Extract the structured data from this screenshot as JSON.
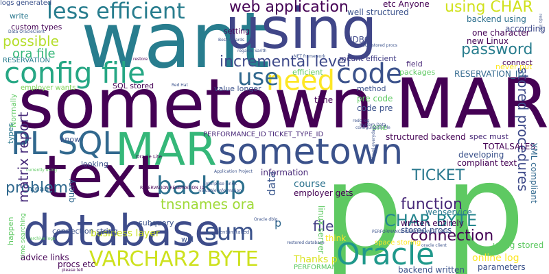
{
  "words": [
    {
      "text": "want",
      "color": "#287d8e"
    },
    {
      "text": "using",
      "color": "#404688"
    },
    {
      "text": "sometown MAR",
      "color": "#440154"
    },
    {
      "text": "p p",
      "color": "#5ec962"
    },
    {
      "text": "config file",
      "color": "#26a784"
    },
    {
      "text": "sometown",
      "color": "#3b528b"
    },
    {
      "text": "MAR",
      "color": "#35b779"
    },
    {
      "text": "text",
      "color": "#440154"
    },
    {
      "text": "database",
      "color": "#3e4c8a"
    },
    {
      "text": "PL SQL",
      "color": "#31688e"
    },
    {
      "text": "less efficient",
      "color": "#287d8e"
    },
    {
      "text": "backup",
      "color": "#2d708e"
    },
    {
      "text": "VARCHAR2 BYTE",
      "color": "#cde11d"
    },
    {
      "text": "Oracle",
      "color": "#1f988b"
    },
    {
      "text": "code",
      "color": "#3b528b"
    },
    {
      "text": "need",
      "color": "#fde725"
    },
    {
      "text": "use",
      "color": "#31688e"
    },
    {
      "text": "sum",
      "color": "#3b528b"
    },
    {
      "text": "web application",
      "color": "#440154"
    },
    {
      "text": "incremental level",
      "color": "#3e4989"
    },
    {
      "text": "using CHAR",
      "color": "#d0e11c"
    },
    {
      "text": "password",
      "color": "#287d8e"
    },
    {
      "text": "CHAR BYTE",
      "color": "#24868e"
    },
    {
      "text": "function",
      "color": "#482878"
    },
    {
      "text": "tnsnames ora",
      "color": "#a0da39"
    },
    {
      "text": "TICKET",
      "color": "#2a788e"
    },
    {
      "text": "problem",
      "color": "#30698e"
    },
    {
      "text": "connection",
      "color": "#440154"
    },
    {
      "text": "stored procedures",
      "color": "#3e4a89"
    },
    {
      "text": "matrix report",
      "color": "#472c7a"
    },
    {
      "text": "file",
      "color": "#433e85"
    },
    {
      "text": "business layer",
      "color": "#c8e020"
    },
    {
      "text": "ora file",
      "color": "#35b779"
    },
    {
      "text": "possible",
      "color": "#b5de2b"
    },
    {
      "text": "data",
      "color": "#39568c"
    },
    {
      "text": "p",
      "color": "#31688e"
    },
    {
      "text": "online log",
      "color": "#fde725"
    },
    {
      "text": "Thanks p",
      "color": "#d8e219"
    },
    {
      "text": "course",
      "color": "#2c728e"
    },
    {
      "text": "write",
      "color": "#2a788e"
    },
    {
      "text": "etc Anyone",
      "color": "#440154"
    },
    {
      "text": "well structured",
      "color": "#3b528b"
    },
    {
      "text": "backend using",
      "color": "#2d708e"
    },
    {
      "text": "according",
      "color": "#3e4989"
    },
    {
      "text": "one character",
      "color": "#440154"
    },
    {
      "text": "custom types",
      "color": "#440154"
    },
    {
      "text": "setting",
      "color": "#440154"
    },
    {
      "text": "JDBC",
      "color": "#3e4989"
    },
    {
      "text": "new Linux",
      "color": "#440154"
    },
    {
      "text": "RESERVATION",
      "color": "#287d8e"
    },
    {
      "text": "meant efficient",
      "color": "#433e85"
    },
    {
      "text": "field",
      "color": "#482878"
    },
    {
      "text": "connect",
      "color": "#440154"
    },
    {
      "text": "never put",
      "color": "#fde725"
    },
    {
      "text": "employer wants",
      "color": "#7ad151"
    },
    {
      "text": "efficient",
      "color": "#5ec962"
    },
    {
      "text": "packages",
      "color": "#5ec962"
    },
    {
      "text": "RESERVATION_ID",
      "color": "#31688e"
    },
    {
      "text": "SQL stored",
      "color": "#440154"
    },
    {
      "text": "value longer",
      "color": "#3b528b"
    },
    {
      "text": "method",
      "color": "#3b528b"
    },
    {
      "text": "pre code",
      "color": "#5ec962"
    },
    {
      "text": "code pre",
      "color": "#3b528b"
    },
    {
      "text": "time",
      "color": "#440154"
    },
    {
      "text": "one",
      "color": "#5ec962"
    },
    {
      "text": "PERFORMANCE_ID TICKET_TYPE_ID",
      "color": "#482878"
    },
    {
      "text": "structured backend",
      "color": "#440154"
    },
    {
      "text": "spec must",
      "color": "#482878"
    },
    {
      "text": "TOTALSALES",
      "color": "#440154"
    },
    {
      "text": "developing",
      "color": "#3b528b"
    },
    {
      "text": "compliant text",
      "color": "#440154"
    },
    {
      "text": "XML compliant",
      "color": "#31688e"
    },
    {
      "text": "know",
      "color": "#3b528b"
    },
    {
      "text": "looking",
      "color": "#3b528b"
    },
    {
      "text": "types",
      "color": "#2a788e"
    },
    {
      "text": "Normally",
      "color": "#5ec962"
    },
    {
      "text": "information",
      "color": "#482878"
    },
    {
      "text": "employer gets",
      "color": "#440154"
    },
    {
      "text": "mean",
      "color": "#31688e"
    },
    {
      "text": "query",
      "color": "#31688e"
    },
    {
      "text": "subquery",
      "color": "#3b528b"
    },
    {
      "text": "connection string",
      "color": "#3b528b"
    },
    {
      "text": "will",
      "color": "#3b528b"
    },
    {
      "text": "think",
      "color": "#fde725"
    },
    {
      "text": "written entirely",
      "color": "#440154"
    },
    {
      "text": "stored procs",
      "color": "#3b528b"
    },
    {
      "text": "webservice",
      "color": "#2a788e"
    },
    {
      "text": "linux server",
      "color": "#5ec962"
    },
    {
      "text": "happen",
      "color": "#5ec962"
    },
    {
      "text": "time searching",
      "color": "#5ec962"
    },
    {
      "text": "advice links",
      "color": "#440154"
    },
    {
      "text": "procs etc",
      "color": "#440154"
    },
    {
      "text": "backend written",
      "color": "#3b528b"
    },
    {
      "text": "PERFORMANCE",
      "color": "#5ec962"
    },
    {
      "text": "parameters",
      "color": "#3b528b"
    },
    {
      "text": "using stored",
      "color": "#5ec962"
    },
    {
      "text": "space storing",
      "color": "#fde725"
    },
    {
      "text": "Oracle Lite",
      "color": "#440154"
    },
    {
      "text": "SQL stored procs",
      "color": "#3b528b"
    },
    {
      "text": "Best regards",
      "color": "#3b528b"
    },
    {
      "text": "regards Sarith",
      "color": "#3b528b"
    },
    {
      "text": "Red Hat",
      "color": "#3b528b"
    },
    {
      "text": "redo log",
      "color": "#3b528b"
    },
    {
      "text": "configuration file",
      "color": "#3b528b"
    },
    {
      "text": "client installed",
      "color": "#3b528b"
    },
    {
      "text": "RESERVATION RESERVATION_ID",
      "color": "#440154"
    },
    {
      "text": "Enterprise Linux",
      "color": "#3b528b"
    },
    {
      "text": "valuable information",
      "color": "#3b528b"
    },
    {
      "text": "Oracle dblg",
      "color": "#3b528b"
    },
    {
      "text": "restored database",
      "color": "#3b528b"
    },
    {
      "text": "oracle client",
      "color": "#3b528b"
    },
    {
      "text": "please tell",
      "color": "#440154"
    },
    {
      "text": "Data OracleClient",
      "color": "#3b528b"
    },
    {
      "text": "restore",
      "color": "#440154"
    },
    {
      "text": "currently using",
      "color": "#5ec962"
    },
    {
      "text": "archive logs",
      "color": "#5ec962"
    },
    {
      "text": "redo info",
      "color": "#3b528b"
    },
    {
      "text": "PERFORMANCE PERFORMANCE_DATE",
      "color": "#3b528b"
    },
    {
      "text": "level everyday",
      "color": "#3b528b"
    },
    {
      "text": "Application Project",
      "color": "#3b528b"
    },
    {
      "text": "NET framework",
      "color": "#3b528b"
    },
    {
      "text": "System Data",
      "color": "#3b528b"
    },
    {
      "text": "logs generated",
      "color": "#3b528b"
    }
  ]
}
